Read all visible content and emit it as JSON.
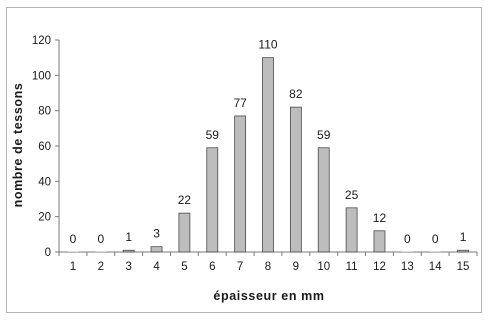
{
  "chart_data": {
    "type": "bar",
    "categories": [
      "1",
      "2",
      "3",
      "4",
      "5",
      "6",
      "7",
      "8",
      "9",
      "10",
      "11",
      "12",
      "13",
      "14",
      "15"
    ],
    "values": [
      0,
      0,
      1,
      3,
      22,
      59,
      77,
      110,
      82,
      59,
      25,
      12,
      0,
      0,
      1
    ],
    "data_labels": [
      "0",
      "0",
      "1",
      "3",
      "22",
      "59",
      "77",
      "110",
      "82",
      "59",
      "25",
      "12",
      "0",
      "0",
      "1"
    ],
    "xlabel": "épaisseur en mm",
    "ylabel": "nombre de tessons",
    "ylim": [
      0,
      120
    ],
    "yticks": [
      "0",
      "20",
      "40",
      "60",
      "80",
      "100",
      "120"
    ],
    "grid": false,
    "legend": "none",
    "colors": {
      "bar_fill": "#bdbdbd",
      "bar_stroke": "#4a4a4a",
      "axis": "#7a7a7a",
      "frame": "#b5b5b5"
    }
  }
}
